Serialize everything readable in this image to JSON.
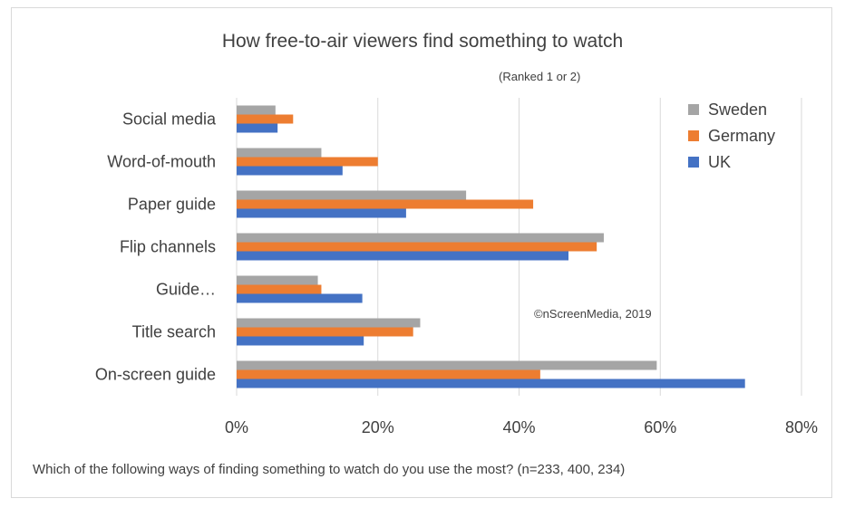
{
  "chart_data": {
    "type": "bar",
    "orientation": "horizontal",
    "title": "How free-to-air viewers find something to watch",
    "subtitle": "(Ranked 1 or 2)",
    "annotation": "©nScreenMedia, 2019",
    "xlabel": "Which of the following ways of finding something to watch do you use the most? (n=233, 400, 234)",
    "ylabel": "",
    "categories": [
      "Social media",
      "Word-of-mouth",
      "Paper guide",
      "Flip channels",
      "Guide…",
      "Title search",
      "On-screen guide"
    ],
    "series": [
      {
        "name": "Sweden",
        "color": "#a5a5a5",
        "values": [
          5.5,
          12,
          32.5,
          52,
          11.5,
          26,
          59.5
        ]
      },
      {
        "name": "Germany",
        "color": "#ed7d31",
        "values": [
          8,
          20,
          42,
          51,
          12,
          25,
          43
        ]
      },
      {
        "name": "UK",
        "color": "#4472c4",
        "values": [
          5.8,
          15,
          24,
          47,
          17.8,
          18,
          72
        ]
      }
    ],
    "xlim": [
      0,
      80
    ],
    "xticks": [
      "0%",
      "20%",
      "40%",
      "60%",
      "80%"
    ],
    "grid": true,
    "legend_position": "right"
  }
}
